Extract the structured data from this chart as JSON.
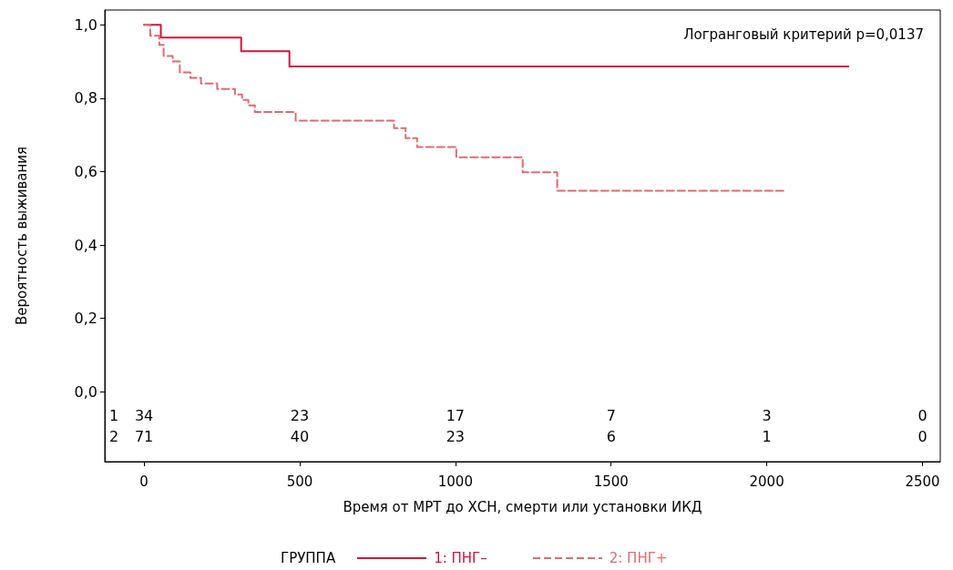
{
  "chart_data": {
    "type": "step",
    "xlabel": "Время от МРТ до ХСН, смерти или установки ИКД",
    "ylabel": "Вероятность выживания",
    "legend_title": "ГРУППА",
    "legend": "bottom",
    "grid": false,
    "xlim": [
      -126,
      2557
    ],
    "xticks": [
      0,
      500,
      1000,
      1500,
      2000,
      2500
    ],
    "ylim": [
      -0.19,
      1.04
    ],
    "yticks": [
      {
        "value": 0,
        "label": "0,0"
      },
      {
        "value": 0.2,
        "label": "0,2"
      },
      {
        "value": 0.4,
        "label": "0,4"
      },
      {
        "value": 0.6,
        "label": "0,6"
      },
      {
        "value": 0.8,
        "label": "0,8"
      },
      {
        "value": 1,
        "label": "1,0"
      }
    ],
    "series": [
      {
        "name": "1: ПНГ–",
        "color": "#d2143c",
        "line_style": "solid",
        "x": [
          0,
          54,
          312,
          467,
          2262
        ],
        "values": [
          1,
          0.965,
          0.928,
          0.886,
          0.886
        ]
      },
      {
        "name": "2: ПНГ+",
        "color": "#e06a70",
        "line_style": "dashed",
        "x": [
          0,
          20,
          49,
          63,
          92,
          115,
          149,
          183,
          235,
          292,
          315,
          335,
          356,
          487,
          803,
          840,
          877,
          1003,
          1216,
          1327,
          2058
        ],
        "values": [
          1,
          0.97,
          0.945,
          0.915,
          0.9,
          0.87,
          0.855,
          0.84,
          0.825,
          0.81,
          0.795,
          0.78,
          0.762,
          0.739,
          0.718,
          0.691,
          0.667,
          0.639,
          0.598,
          0.548,
          0.548
        ]
      }
    ],
    "annotations": [
      "Логранговый критерий p=0,0137",
      "1",
      "34",
      "23",
      "17",
      "7",
      "3",
      "0",
      "2",
      "71",
      "40",
      "23",
      "6",
      "1",
      "0"
    ]
  }
}
